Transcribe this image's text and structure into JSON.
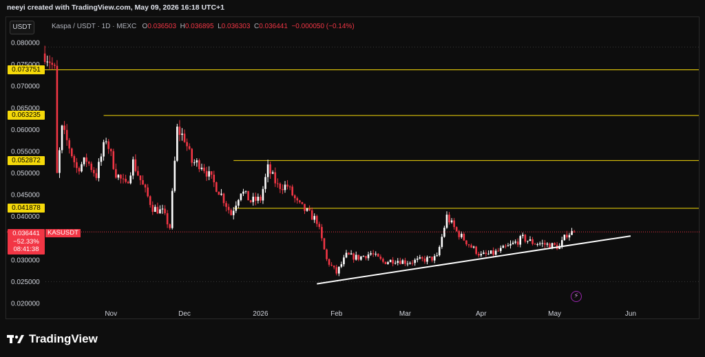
{
  "credit": "neeyi created with TradingView.com, May 09, 2026 16:18 UTC+1",
  "currency_badge": "USDT",
  "header": {
    "symbol": "Kaspa / USDT · 1D · MEXC",
    "open_label": "O",
    "open": "0.036503",
    "high_label": "H",
    "high": "0.036895",
    "low_label": "L",
    "low": "0.036303",
    "close_label": "C",
    "close": "0.036441",
    "change": "−0.000050 (−0.14%)"
  },
  "levels": [
    "0.073751",
    "0.063235",
    "0.052872",
    "0.041878"
  ],
  "last_price": {
    "price": "0.036441",
    "change_pct": "−52.33%",
    "countdown": "08:41:38",
    "symbol": "KASUSDT"
  },
  "brand": "TradingView",
  "colors": {
    "up": "#ffffff",
    "down": "#f23645",
    "level": "#f5d90a",
    "trendline": "#ffffff"
  },
  "chart_data": {
    "type": "candlestick",
    "y_ticks": [
      "0.080000",
      "0.075000",
      "0.070000",
      "0.065000",
      "0.060000",
      "0.055000",
      "0.050000",
      "0.045000",
      "0.040000",
      "0.035000",
      "0.030000",
      "0.025000",
      "0.020000"
    ],
    "ylim": [
      0.02,
      0.08
    ],
    "x_ticks": [
      "Nov",
      "Dec",
      "2026",
      "Feb",
      "Mar",
      "Apr",
      "May",
      "Jun"
    ],
    "horizontal_levels": [
      0.073751,
      0.063235,
      0.052872,
      0.041878
    ],
    "trendline": {
      "from": [
        "2026-01-24",
        0.0245
      ],
      "to": [
        "2026-06-01",
        0.0355
      ]
    },
    "close_path": [
      [
        "2025-10-05",
        0.0775
      ],
      [
        "2025-10-07",
        0.076
      ],
      [
        "2025-10-09",
        0.0735
      ],
      [
        "2025-10-10",
        0.0495
      ],
      [
        "2025-10-12",
        0.06
      ],
      [
        "2025-10-15",
        0.056
      ],
      [
        "2025-10-18",
        0.051
      ],
      [
        "2025-10-22",
        0.053
      ],
      [
        "2025-10-26",
        0.0495
      ],
      [
        "2025-10-30",
        0.058
      ],
      [
        "2025-11-03",
        0.05
      ],
      [
        "2025-11-07",
        0.047
      ],
      [
        "2025-11-10",
        0.0525
      ],
      [
        "2025-11-14",
        0.047
      ],
      [
        "2025-11-18",
        0.042
      ],
      [
        "2025-11-22",
        0.041
      ],
      [
        "2025-11-25",
        0.0375
      ],
      [
        "2025-11-28",
        0.06
      ],
      [
        "2025-12-01",
        0.058
      ],
      [
        "2025-12-04",
        0.0525
      ],
      [
        "2025-12-08",
        0.052
      ],
      [
        "2025-12-12",
        0.0485
      ],
      [
        "2025-12-16",
        0.045
      ],
      [
        "2025-12-20",
        0.0405
      ],
      [
        "2025-12-24",
        0.046
      ],
      [
        "2025-12-28",
        0.0435
      ],
      [
        "2026-01-01",
        0.044
      ],
      [
        "2026-01-04",
        0.051
      ],
      [
        "2026-01-08",
        0.047
      ],
      [
        "2026-01-12",
        0.047
      ],
      [
        "2026-01-16",
        0.043
      ],
      [
        "2026-01-20",
        0.041
      ],
      [
        "2026-01-24",
        0.039
      ],
      [
        "2026-01-28",
        0.03
      ],
      [
        "2026-02-01",
        0.027
      ],
      [
        "2026-02-05",
        0.031
      ],
      [
        "2026-02-10",
        0.0305
      ],
      [
        "2026-02-15",
        0.0315
      ],
      [
        "2026-02-20",
        0.0295
      ],
      [
        "2026-02-25",
        0.03
      ],
      [
        "2026-03-02",
        0.0295
      ],
      [
        "2026-03-08",
        0.03
      ],
      [
        "2026-03-14",
        0.0305
      ],
      [
        "2026-03-18",
        0.04
      ],
      [
        "2026-03-22",
        0.0365
      ],
      [
        "2026-03-28",
        0.033
      ],
      [
        "2026-04-01",
        0.031
      ],
      [
        "2026-04-06",
        0.0315
      ],
      [
        "2026-04-12",
        0.033
      ],
      [
        "2026-04-18",
        0.035
      ],
      [
        "2026-04-22",
        0.034
      ],
      [
        "2026-04-28",
        0.0335
      ],
      [
        "2026-05-03",
        0.033
      ],
      [
        "2026-05-06",
        0.036
      ],
      [
        "2026-05-09",
        0.0364
      ]
    ]
  }
}
